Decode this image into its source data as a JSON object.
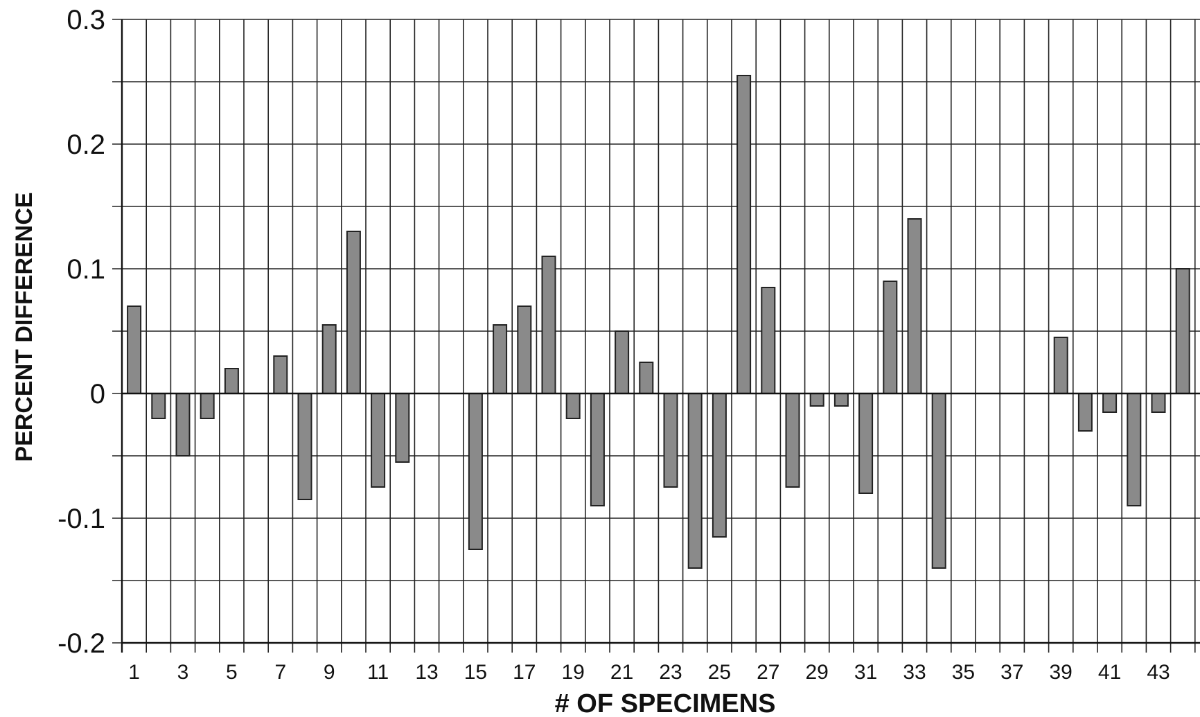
{
  "chart_data": {
    "type": "bar",
    "title": "",
    "xlabel": "# OF SPECIMENS",
    "ylabel": "PERCENT DIFFERENCE",
    "ylim": [
      -0.2,
      0.3
    ],
    "yticks": [
      "0.3",
      "0.2",
      "0.1",
      "0",
      "-0.1",
      "-0.2"
    ],
    "ytick_values": [
      0.3,
      0.2,
      0.1,
      0,
      -0.1,
      -0.2
    ],
    "grid": true,
    "legend": "none",
    "bar_color": "#8a8a8a",
    "categories": [
      1,
      2,
      3,
      4,
      5,
      6,
      7,
      8,
      9,
      10,
      11,
      12,
      13,
      14,
      15,
      16,
      17,
      18,
      19,
      20,
      21,
      22,
      23,
      24,
      25,
      26,
      27,
      28,
      29,
      30,
      31,
      32,
      33,
      34,
      35,
      36,
      37,
      38,
      39,
      40,
      41,
      42,
      43,
      44
    ],
    "xtick_labels": [
      "1",
      "3",
      "5",
      "7",
      "9",
      "11",
      "13",
      "15",
      "17",
      "19",
      "21",
      "23",
      "25",
      "27",
      "29",
      "31",
      "33",
      "35",
      "37",
      "39",
      "41",
      "43"
    ],
    "values": [
      0.07,
      -0.02,
      -0.05,
      -0.02,
      0.02,
      0,
      0.03,
      -0.085,
      0.055,
      0.13,
      -0.075,
      -0.055,
      0,
      0,
      -0.125,
      0.055,
      0.07,
      0.11,
      -0.02,
      -0.09,
      0.05,
      0.025,
      -0.075,
      -0.14,
      -0.115,
      0.255,
      0.085,
      -0.075,
      -0.01,
      -0.01,
      -0.08,
      0.09,
      0.14,
      -0.14,
      0,
      0,
      0,
      0,
      0.045,
      -0.03,
      -0.015,
      -0.09,
      -0.015,
      0.1
    ]
  }
}
